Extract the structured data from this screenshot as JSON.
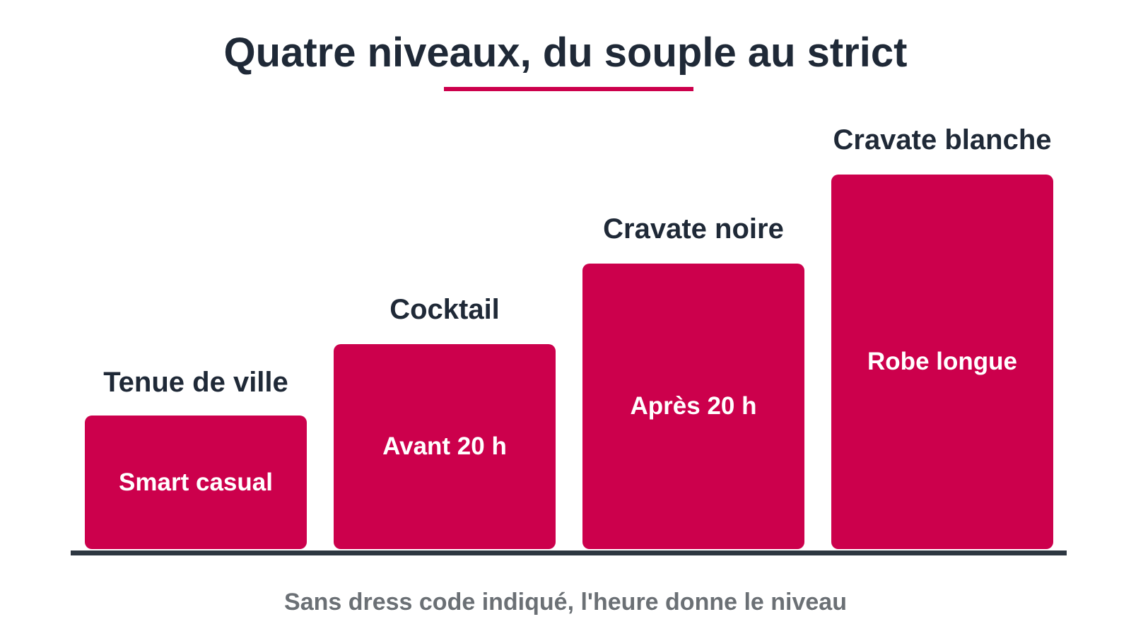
{
  "title": "Quatre niveaux, du souple au strict",
  "caption": "Sans dress code indiqué, l'heure donne le niveau",
  "colors": {
    "accent": "#cc004c",
    "text_dark": "#1f2937",
    "baseline": "#2d3741",
    "caption": "#6b7075"
  },
  "levels": [
    {
      "label": "Tenue de ville",
      "description": "Smart casual",
      "rank": 1
    },
    {
      "label": "Cocktail",
      "description": "Avant 20 h",
      "rank": 2
    },
    {
      "label": "Cravate noire",
      "description": "Après 20 h",
      "rank": 3
    },
    {
      "label": "Cravate blanche",
      "description": "Robe longue",
      "rank": 4
    }
  ]
}
